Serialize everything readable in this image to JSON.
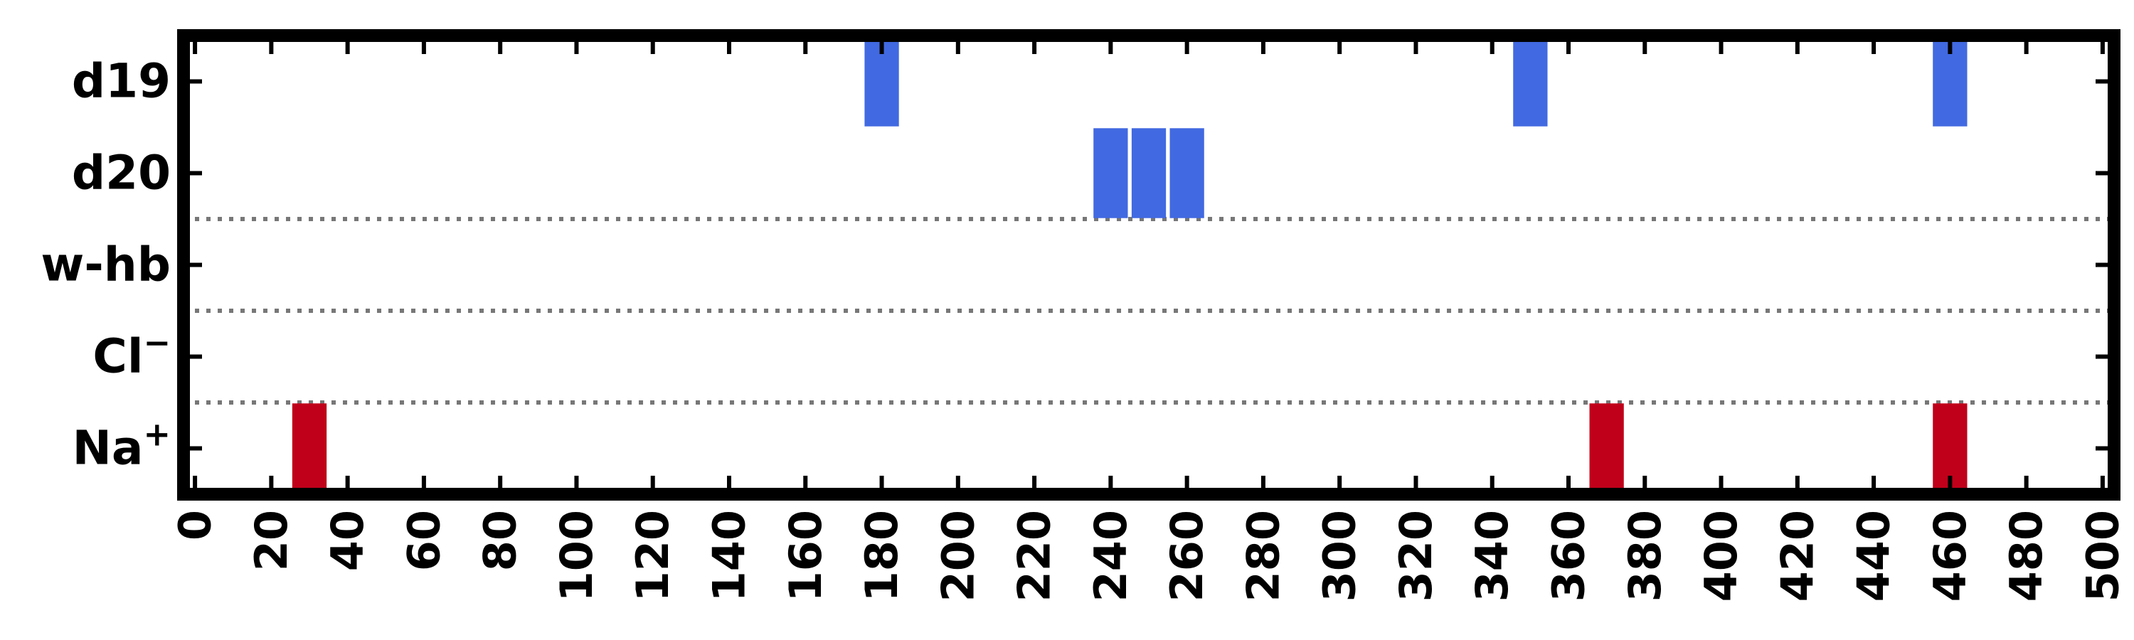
{
  "chart_data": {
    "type": "heatmap",
    "title": "",
    "xlabel": "",
    "ylabel": "",
    "xlim": [
      -3,
      503
    ],
    "ylim": [
      -0.5,
      4.5
    ],
    "grid": false,
    "x_ticks": [
      0,
      20,
      40,
      60,
      80,
      100,
      120,
      140,
      160,
      180,
      200,
      220,
      240,
      260,
      280,
      300,
      320,
      340,
      360,
      380,
      400,
      420,
      440,
      460,
      480,
      500
    ],
    "x_tick_labels": [
      "0",
      "20",
      "40",
      "60",
      "80",
      "100",
      "120",
      "140",
      "160",
      "180",
      "200",
      "220",
      "240",
      "260",
      "280",
      "300",
      "320",
      "340",
      "360",
      "380",
      "400",
      "420",
      "440",
      "460",
      "480",
      "500"
    ],
    "rows": [
      {
        "label": "d19",
        "sup": "",
        "color": "#4169e1",
        "events": [
          180,
          350,
          460
        ]
      },
      {
        "label": "d20",
        "sup": "",
        "color": "#4169e1",
        "events": [
          240,
          250,
          260
        ]
      },
      {
        "label": "w-hb",
        "sup": "",
        "color": "#4169e1",
        "events": []
      },
      {
        "label": "Cl",
        "sup": "−",
        "color": "#c0001a",
        "events": []
      },
      {
        "label": "Na",
        "sup": "+",
        "color": "#c0001a",
        "events": [
          30,
          370,
          460
        ]
      }
    ],
    "separators_between_rows": [
      [
        1,
        2
      ],
      [
        2,
        3
      ],
      [
        3,
        4
      ]
    ],
    "separator_color": "#777777"
  }
}
